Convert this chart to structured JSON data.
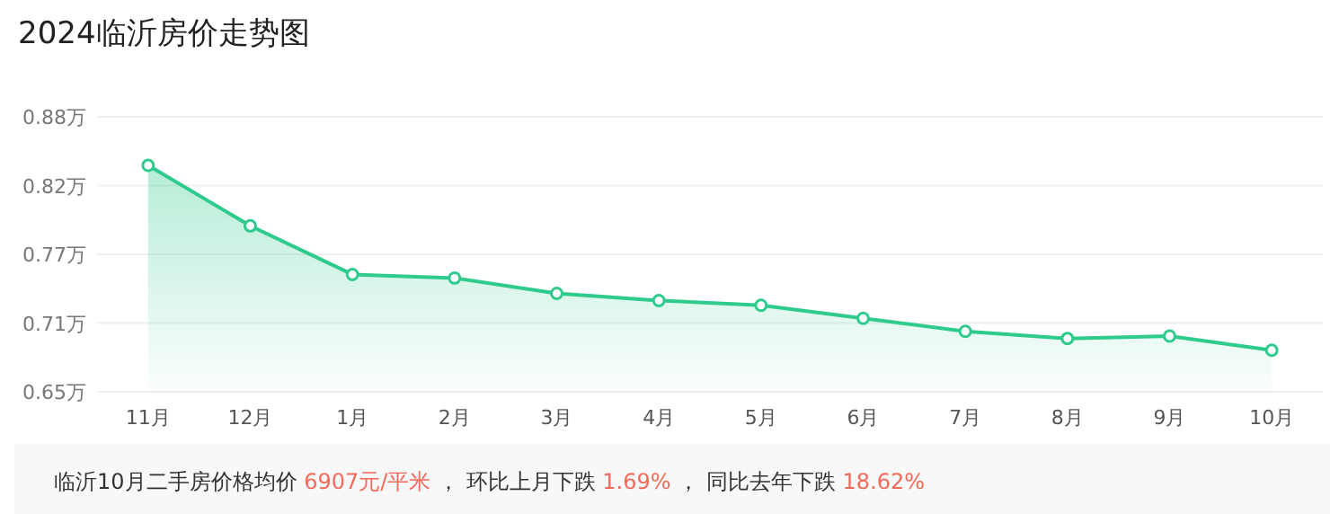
{
  "chart_data": {
    "type": "area",
    "title": "2024临沂房价走势图",
    "categories": [
      "11月",
      "12月",
      "1月",
      "2月",
      "3月",
      "4月",
      "5月",
      "6月",
      "7月",
      "8月",
      "9月",
      "10月"
    ],
    "series": [
      {
        "color": "#2ecb8d",
        "values": [
          0.841,
          0.79,
          0.749,
          0.746,
          0.733,
          0.727,
          0.723,
          0.712,
          0.701,
          0.695,
          0.697,
          0.685
        ]
      }
    ],
    "ylim": [
      0.65,
      0.882
    ],
    "yticks": [
      {
        "value": 0.65,
        "label": "0.65万"
      },
      {
        "value": 0.708,
        "label": "0.71万"
      },
      {
        "value": 0.766,
        "label": "0.77万"
      },
      {
        "value": 0.824,
        "label": "0.82万"
      },
      {
        "value": 0.882,
        "label": "0.88万"
      }
    ],
    "grid": "y",
    "marker": "circle",
    "line_style": "solid",
    "annotations": [
      "临沂10月二手房价格均价 6907元/平米 ， 环比上月下跌 1.69% ， 同比去年下跌 18.62%"
    ]
  }
}
